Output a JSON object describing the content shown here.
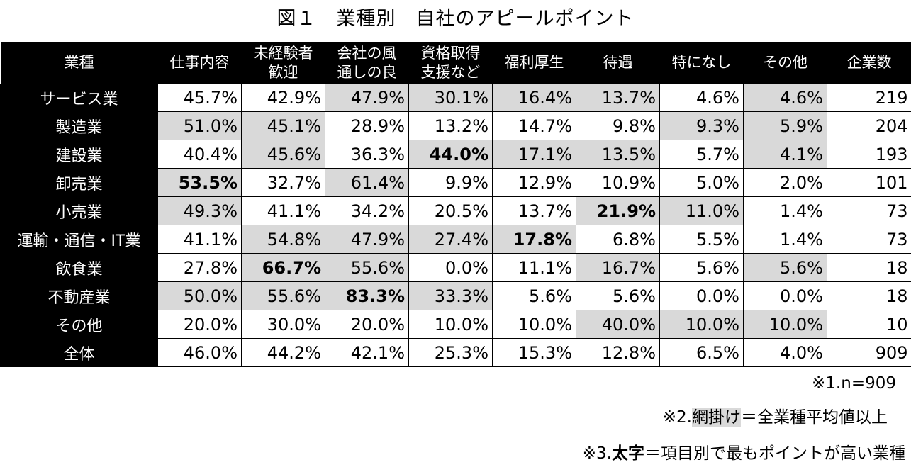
{
  "title": "図１　業種別　自社のアピールポイント",
  "table": {
    "headers": [
      "業種",
      "仕事内容",
      "未経験者\n歓迎",
      "会社の風\n通しの良",
      "資格取得\n支援など",
      "福利厚生",
      "待遇",
      "特になし",
      "その他",
      "企業数"
    ],
    "rows": [
      {
        "label": "サービス業",
        "values": [
          "45.7%",
          "42.9%",
          "47.9%",
          "30.1%",
          "16.4%",
          "13.7%",
          "4.6%",
          "4.6%",
          "219"
        ],
        "shaded": [
          false,
          false,
          true,
          true,
          true,
          true,
          false,
          true,
          false
        ],
        "bold": [
          false,
          false,
          false,
          false,
          false,
          false,
          false,
          false,
          false
        ]
      },
      {
        "label": "製造業",
        "values": [
          "51.0%",
          "45.1%",
          "28.9%",
          "13.2%",
          "14.7%",
          "9.8%",
          "9.3%",
          "5.9%",
          "204"
        ],
        "shaded": [
          true,
          true,
          false,
          false,
          false,
          false,
          true,
          true,
          false
        ],
        "bold": [
          false,
          false,
          false,
          false,
          false,
          false,
          false,
          false,
          false
        ]
      },
      {
        "label": "建設業",
        "values": [
          "40.4%",
          "45.6%",
          "36.3%",
          "44.0%",
          "17.1%",
          "13.5%",
          "5.7%",
          "4.1%",
          "193"
        ],
        "shaded": [
          false,
          true,
          false,
          true,
          true,
          true,
          false,
          true,
          false
        ],
        "bold": [
          false,
          false,
          false,
          true,
          false,
          false,
          false,
          false,
          false
        ]
      },
      {
        "label": "卸売業",
        "values": [
          "53.5%",
          "32.7%",
          "61.4%",
          "9.9%",
          "12.9%",
          "10.9%",
          "5.0%",
          "2.0%",
          "101"
        ],
        "shaded": [
          true,
          false,
          true,
          false,
          false,
          false,
          false,
          false,
          false
        ],
        "bold": [
          true,
          false,
          false,
          false,
          false,
          false,
          false,
          false,
          false
        ]
      },
      {
        "label": "小売業",
        "values": [
          "49.3%",
          "41.1%",
          "34.2%",
          "20.5%",
          "13.7%",
          "21.9%",
          "11.0%",
          "1.4%",
          "73"
        ],
        "shaded": [
          true,
          false,
          false,
          false,
          false,
          true,
          true,
          false,
          false
        ],
        "bold": [
          false,
          false,
          false,
          false,
          false,
          true,
          false,
          false,
          false
        ]
      },
      {
        "label": "運輸・通信・IT業",
        "values": [
          "41.1%",
          "54.8%",
          "47.9%",
          "27.4%",
          "17.8%",
          "6.8%",
          "5.5%",
          "1.4%",
          "73"
        ],
        "shaded": [
          false,
          true,
          true,
          true,
          true,
          false,
          false,
          false,
          false
        ],
        "bold": [
          false,
          false,
          false,
          false,
          true,
          false,
          false,
          false,
          false
        ]
      },
      {
        "label": "飲食業",
        "values": [
          "27.8%",
          "66.7%",
          "55.6%",
          "0.0%",
          "11.1%",
          "16.7%",
          "5.6%",
          "5.6%",
          "18"
        ],
        "shaded": [
          false,
          true,
          true,
          false,
          false,
          true,
          false,
          true,
          false
        ],
        "bold": [
          false,
          true,
          false,
          false,
          false,
          false,
          false,
          false,
          false
        ]
      },
      {
        "label": "不動産業",
        "values": [
          "50.0%",
          "55.6%",
          "83.3%",
          "33.3%",
          "5.6%",
          "5.6%",
          "0.0%",
          "0.0%",
          "18"
        ],
        "shaded": [
          true,
          true,
          true,
          true,
          false,
          false,
          false,
          false,
          false
        ],
        "bold": [
          false,
          false,
          true,
          false,
          false,
          false,
          false,
          false,
          false
        ]
      },
      {
        "label": "その他",
        "values": [
          "20.0%",
          "30.0%",
          "20.0%",
          "10.0%",
          "10.0%",
          "40.0%",
          "10.0%",
          "10.0%",
          "10"
        ],
        "shaded": [
          false,
          false,
          false,
          false,
          false,
          true,
          true,
          true,
          false
        ],
        "bold": [
          false,
          false,
          false,
          false,
          false,
          false,
          false,
          false,
          false
        ]
      },
      {
        "label": "全体",
        "values": [
          "46.0%",
          "44.2%",
          "42.1%",
          "25.3%",
          "15.3%",
          "12.8%",
          "6.5%",
          "4.0%",
          "909"
        ],
        "shaded": [
          false,
          false,
          false,
          false,
          false,
          false,
          false,
          false,
          false
        ],
        "bold": [
          false,
          false,
          false,
          false,
          false,
          false,
          false,
          false,
          false
        ]
      }
    ]
  },
  "notes": {
    "n1": "※1.n=909",
    "n2_prefix": "※2.",
    "n2_highlight": "網掛け",
    "n2_suffix": "＝全業種平均値以上",
    "n3_prefix": "※3.",
    "n3_bold": "太字",
    "n3_suffix": "＝項目別で最もポイントが高い業種"
  },
  "colors": {
    "header_bg": "#000000",
    "header_text": "#ffffff",
    "shade": "#d9d9d9"
  }
}
